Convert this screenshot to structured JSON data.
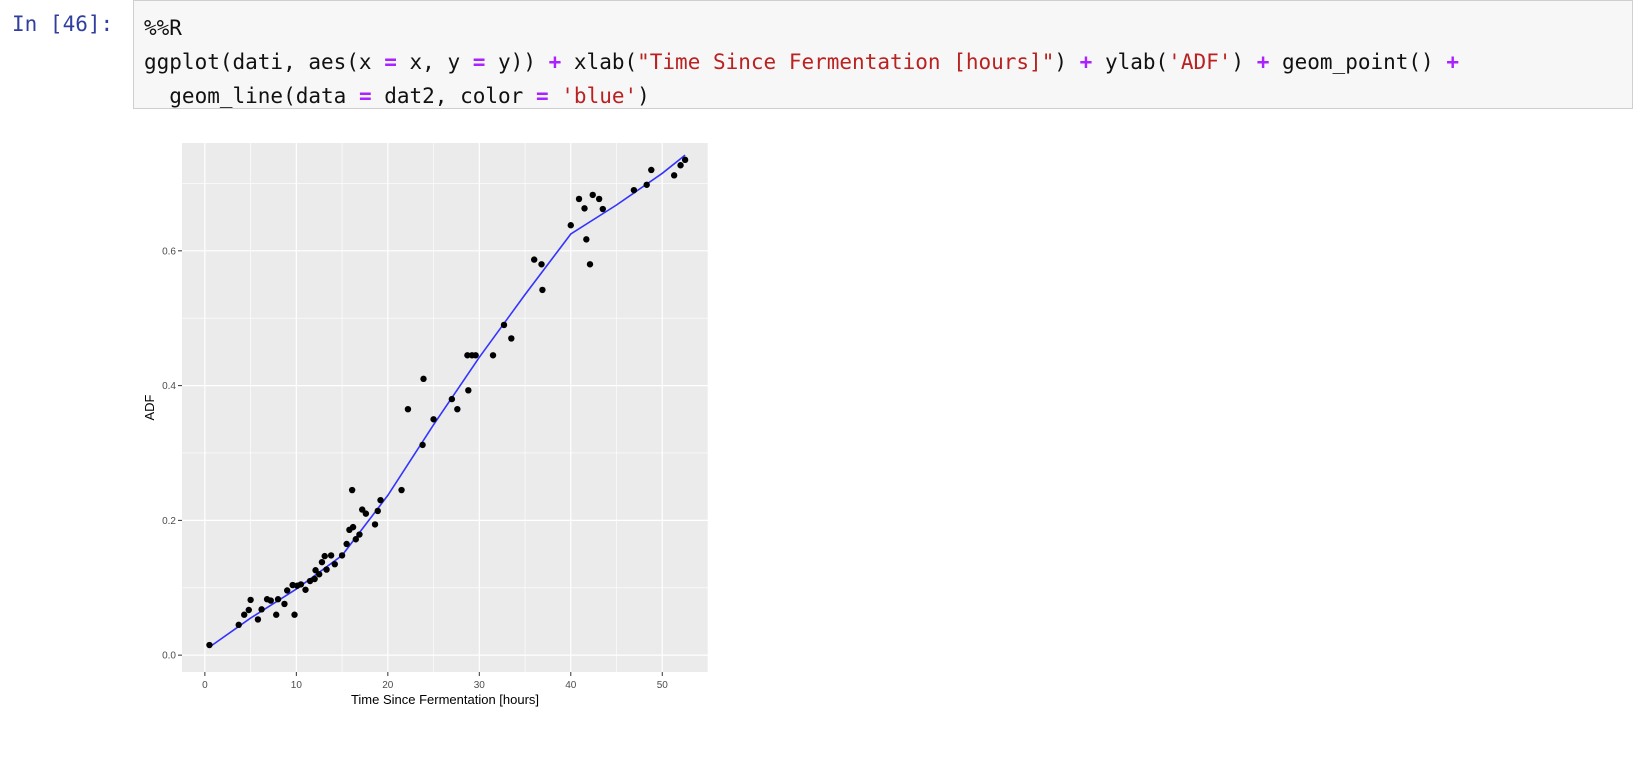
{
  "cell": {
    "prompt": "In [46]:",
    "code_lines": [
      [
        {
          "t": "%%R",
          "c": ""
        }
      ],
      [
        {
          "t": "ggplot(dati, aes(x ",
          "c": ""
        },
        {
          "t": "=",
          "c": "op"
        },
        {
          "t": " x, y ",
          "c": ""
        },
        {
          "t": "=",
          "c": "op"
        },
        {
          "t": " y)) ",
          "c": ""
        },
        {
          "t": "+",
          "c": "op"
        },
        {
          "t": " xlab(",
          "c": ""
        },
        {
          "t": "\"Time Since Fermentation [hours]\"",
          "c": "str"
        },
        {
          "t": ") ",
          "c": ""
        },
        {
          "t": "+",
          "c": "op"
        },
        {
          "t": " ylab(",
          "c": ""
        },
        {
          "t": "'ADF'",
          "c": "str"
        },
        {
          "t": ") ",
          "c": ""
        },
        {
          "t": "+",
          "c": "op"
        },
        {
          "t": " geom_point() ",
          "c": ""
        },
        {
          "t": "+",
          "c": "op"
        }
      ],
      [
        {
          "t": "  geom_line(data ",
          "c": ""
        },
        {
          "t": "=",
          "c": "op"
        },
        {
          "t": " dat2, color ",
          "c": ""
        },
        {
          "t": "=",
          "c": "op"
        },
        {
          "t": " ",
          "c": ""
        },
        {
          "t": "'blue'",
          "c": "str"
        },
        {
          "t": ")",
          "c": ""
        }
      ]
    ]
  },
  "colors": {
    "panel_bg": "#ebebeb",
    "grid": "#ffffff",
    "points": "#000000",
    "line": "#3333ff",
    "tick_label": "#4d4d4d"
  },
  "chart_data": {
    "type": "scatter",
    "xlabel": "Time Since Fermentation [hours]",
    "ylabel": "ADF",
    "xlim": [
      -2.5,
      55
    ],
    "ylim": [
      -0.025,
      0.76
    ],
    "xticks": [
      0,
      10,
      20,
      30,
      40,
      50
    ],
    "yticks": [
      0.0,
      0.2,
      0.4,
      0.6
    ],
    "xtick_labels": [
      "0",
      "10",
      "20",
      "30",
      "40",
      "50"
    ],
    "ytick_labels": [
      "0.0",
      "0.2",
      "0.4",
      "0.6"
    ],
    "grid": true,
    "points": [
      [
        0.5,
        0.015
      ],
      [
        3.7,
        0.045
      ],
      [
        4.3,
        0.06
      ],
      [
        4.8,
        0.067
      ],
      [
        5.0,
        0.082
      ],
      [
        5.8,
        0.053
      ],
      [
        6.2,
        0.068
      ],
      [
        6.8,
        0.083
      ],
      [
        7.2,
        0.081
      ],
      [
        7.8,
        0.06
      ],
      [
        8.0,
        0.083
      ],
      [
        8.7,
        0.076
      ],
      [
        9.0,
        0.096
      ],
      [
        9.6,
        0.104
      ],
      [
        9.8,
        0.06
      ],
      [
        10.1,
        0.103
      ],
      [
        10.5,
        0.105
      ],
      [
        11.0,
        0.097
      ],
      [
        11.5,
        0.11
      ],
      [
        12.0,
        0.113
      ],
      [
        12.1,
        0.126
      ],
      [
        12.5,
        0.12
      ],
      [
        12.8,
        0.138
      ],
      [
        13.1,
        0.147
      ],
      [
        13.3,
        0.127
      ],
      [
        13.8,
        0.148
      ],
      [
        14.2,
        0.135
      ],
      [
        15.0,
        0.148
      ],
      [
        15.5,
        0.165
      ],
      [
        15.8,
        0.186
      ],
      [
        16.1,
        0.245
      ],
      [
        16.2,
        0.19
      ],
      [
        16.5,
        0.172
      ],
      [
        16.9,
        0.179
      ],
      [
        17.2,
        0.216
      ],
      [
        17.6,
        0.21
      ],
      [
        18.6,
        0.194
      ],
      [
        18.9,
        0.214
      ],
      [
        19.2,
        0.23
      ],
      [
        21.5,
        0.245
      ],
      [
        22.2,
        0.365
      ],
      [
        23.8,
        0.312
      ],
      [
        23.9,
        0.41
      ],
      [
        25.0,
        0.35
      ],
      [
        27.0,
        0.38
      ],
      [
        27.6,
        0.365
      ],
      [
        28.7,
        0.445
      ],
      [
        28.8,
        0.393
      ],
      [
        29.2,
        0.445
      ],
      [
        29.6,
        0.445
      ],
      [
        31.5,
        0.445
      ],
      [
        32.7,
        0.49
      ],
      [
        33.5,
        0.47
      ],
      [
        36.0,
        0.587
      ],
      [
        36.8,
        0.58
      ],
      [
        36.9,
        0.542
      ],
      [
        40.0,
        0.638
      ],
      [
        40.9,
        0.677
      ],
      [
        41.5,
        0.663
      ],
      [
        41.7,
        0.617
      ],
      [
        42.1,
        0.58
      ],
      [
        42.4,
        0.683
      ],
      [
        43.1,
        0.677
      ],
      [
        43.5,
        0.662
      ],
      [
        46.9,
        0.69
      ],
      [
        48.3,
        0.698
      ],
      [
        48.8,
        0.72
      ],
      [
        51.3,
        0.712
      ],
      [
        52.0,
        0.727
      ],
      [
        52.5,
        0.735
      ]
    ],
    "line": [
      [
        0.5,
        0.012
      ],
      [
        5,
        0.055
      ],
      [
        10,
        0.098
      ],
      [
        15,
        0.148
      ],
      [
        20,
        0.237
      ],
      [
        25,
        0.342
      ],
      [
        30,
        0.442
      ],
      [
        35,
        0.535
      ],
      [
        40,
        0.625
      ],
      [
        45,
        0.668
      ],
      [
        50,
        0.715
      ],
      [
        52.5,
        0.742
      ]
    ]
  }
}
